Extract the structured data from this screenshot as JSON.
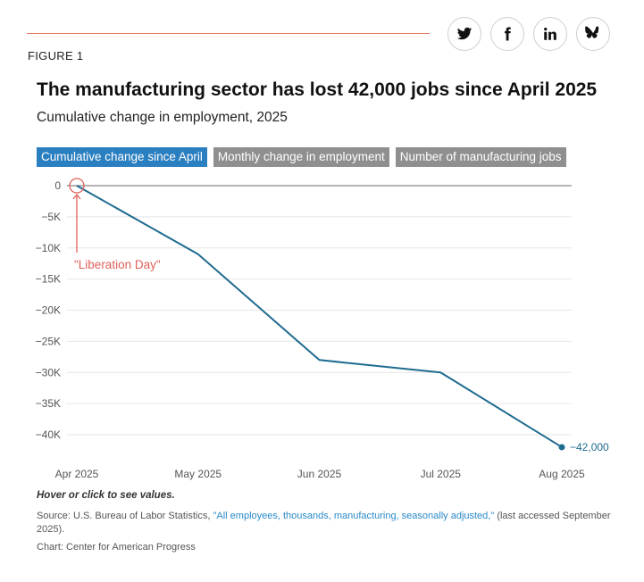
{
  "header": {
    "figure_label": "FIGURE 1"
  },
  "share": [
    {
      "name": "twitter-icon"
    },
    {
      "name": "facebook-icon"
    },
    {
      "name": "linkedin-icon"
    },
    {
      "name": "bluesky-icon"
    }
  ],
  "title": "The manufacturing sector has lost 42,000 jobs since April 2025",
  "subtitle": "Cumulative change in employment, 2025",
  "tabs": [
    {
      "label": "Cumulative change since April",
      "active": true
    },
    {
      "label": "Monthly change in employment",
      "active": false
    },
    {
      "label": "Number of manufacturing jobs",
      "active": false
    }
  ],
  "chart_data": {
    "type": "line",
    "x": [
      "Apr 2025",
      "May 2025",
      "Jun 2025",
      "Jul 2025",
      "Aug 2025"
    ],
    "series": [
      {
        "values": [
          0,
          -11000,
          -28000,
          -30000,
          -42000
        ]
      }
    ],
    "yticks": [
      0,
      -5000,
      -10000,
      -15000,
      -20000,
      -25000,
      -30000,
      -35000,
      -40000
    ],
    "ytick_labels": [
      "0",
      "−5K",
      "−10K",
      "−15K",
      "−20K",
      "−25K",
      "−30K",
      "−35K",
      "−40K"
    ],
    "ylim": [
      -43000,
      0
    ],
    "end_label": "−42,000",
    "annotation": "\"Liberation Day\"",
    "grid": true,
    "colors": {
      "line": "#1f6b8f",
      "annotation": "#e0605a",
      "zero_line": "#888888",
      "grid": "#e6e6e6"
    }
  },
  "footer": {
    "note": "Hover or click to see values.",
    "source_prefix": "Source: U.S. Bureau of Labor Statistics, ",
    "source_link": "\"All employees, thousands, manufacturing, seasonally adjusted,\"",
    "source_suffix": " (last accessed September 2025).",
    "credit": "Chart: Center for American Progress"
  }
}
